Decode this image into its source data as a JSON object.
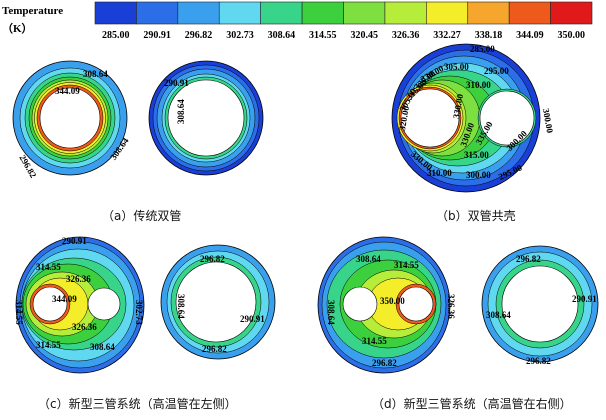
{
  "colorbar": {
    "title_line1": "Temperature",
    "title_line2": "（K）",
    "ticks": [
      "285.00",
      "290.91",
      "296.82",
      "302.73",
      "308.64",
      "314.55",
      "320.45",
      "326.36",
      "332.27",
      "338.18",
      "344.09",
      "350.00"
    ],
    "colors": [
      "#1a3fd6",
      "#2c6ee8",
      "#3aa0ee",
      "#5fd8f0",
      "#38d48a",
      "#3ccf3e",
      "#7ee040",
      "#b6ec3a",
      "#f4ee2a",
      "#f6a62c",
      "#ee5a1c",
      "#e01a1a"
    ]
  },
  "panels": {
    "a": {
      "caption": "（a）传统双管",
      "left_labels": [
        "308.64",
        "344.09",
        "308.64",
        "296.82"
      ],
      "right_labels": [
        "290.91",
        "308.64"
      ]
    },
    "b": {
      "caption": "（b）双管共壳",
      "labels": [
        "285.00",
        "305.00",
        "295.00",
        "300.00",
        "310.00",
        "315.00",
        "330.00",
        "330.00",
        "330.00",
        "320.00",
        "300.00",
        "295.00",
        "310.00",
        "305.00",
        "315.00",
        "325.00",
        "330.00",
        "335.00",
        "300.00"
      ]
    },
    "c": {
      "caption": "（c）新型三管系统（高温管在左侧）",
      "left_labels": [
        "290.91",
        "314.55",
        "326.36",
        "344.09",
        "302.73",
        "326.36",
        "308.64",
        "314.55",
        "314.55"
      ],
      "right_labels": [
        "296.82",
        "308.64",
        "290.91",
        "296.82"
      ]
    },
    "d": {
      "caption": "（d）新型三管系统（高温管在右侧）",
      "left_labels": [
        "308.64",
        "314.55",
        "350.00",
        "308.64",
        "314.55",
        "296.82",
        "326.36"
      ],
      "right_labels": [
        "296.82",
        "290.91",
        "308.64",
        "296.82"
      ]
    }
  }
}
